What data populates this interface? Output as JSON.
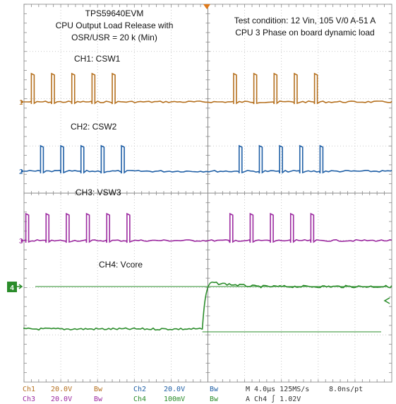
{
  "title_block": {
    "line1": "TPS59640EVM",
    "line2": "CPU Output Load Release with",
    "line3": "OSR/USR = 20 k (Min)"
  },
  "test_condition": {
    "line1": "Test condition: 12 Vin, 105 V/0 A-51 A",
    "line2": "CPU 3 Phase on board dynamic load"
  },
  "channels": [
    {
      "marker": "1",
      "label": "CH1: CSW1",
      "color": "#b5701e"
    },
    {
      "marker": "2",
      "label": "CH2: CSW2",
      "color": "#1f5fa6"
    },
    {
      "marker": "3",
      "label": "CH3: VSW3",
      "color": "#9c2aa0"
    },
    {
      "marker": "4",
      "label": "CH4: Vcore",
      "color": "#2a8c2a"
    }
  ],
  "status": {
    "row1": [
      {
        "text": "Ch1",
        "color": "#b5701e"
      },
      {
        "text": "20.0V",
        "color": "#b5701e"
      },
      {
        "text": "Bw",
        "color": "#b5701e"
      },
      {
        "text": "Ch2",
        "color": "#1f5fa6"
      },
      {
        "text": "20.0V",
        "color": "#1f5fa6"
      },
      {
        "text": "Bw",
        "color": "#1f5fa6"
      },
      {
        "text": "M 4.0µs 125MS/s",
        "color": "#333333"
      },
      {
        "text": "8.0ns/pt",
        "color": "#333333"
      }
    ],
    "row2": [
      {
        "text": "Ch3",
        "color": "#9c2aa0"
      },
      {
        "text": "20.0V",
        "color": "#9c2aa0"
      },
      {
        "text": "Bw",
        "color": "#9c2aa0"
      },
      {
        "text": "Ch4",
        "color": "#2a8c2a"
      },
      {
        "text": "100mV",
        "color": "#2a8c2a"
      },
      {
        "text": "Bw",
        "color": "#2a8c2a"
      },
      {
        "text": "A  Ch4  ∫  1.02V",
        "color": "#333333"
      }
    ]
  },
  "chart_data": {
    "type": "line",
    "grid": true,
    "x_divisions": 10,
    "y_divisions": 8,
    "trigger_marker_color": "#e07a1a",
    "series": [
      {
        "name": "CH1: CSW1",
        "pulse_period_div": 0.55,
        "first_pulse_div": 0.2,
        "pulses_before": 5,
        "pulses_after": 5,
        "gap_after_div": 0.7
      },
      {
        "name": "CH2: CSW2",
        "pulse_period_div": 0.55,
        "first_pulse_div": 0.45,
        "pulses_before": 5,
        "pulses_after": 5,
        "gap_after_div": 0.85
      },
      {
        "name": "CH3: VSW3",
        "pulse_period_div": 0.55,
        "first_pulse_div": 0.05,
        "pulses_before": 6,
        "pulses_after": 5,
        "gap_after_div": 0.6
      },
      {
        "name": "CH4: Vcore",
        "step_at_div": 4.85,
        "low_level_div": 0.0,
        "high_level_div": 2.4,
        "overshoot_div": 0.25
      }
    ]
  }
}
